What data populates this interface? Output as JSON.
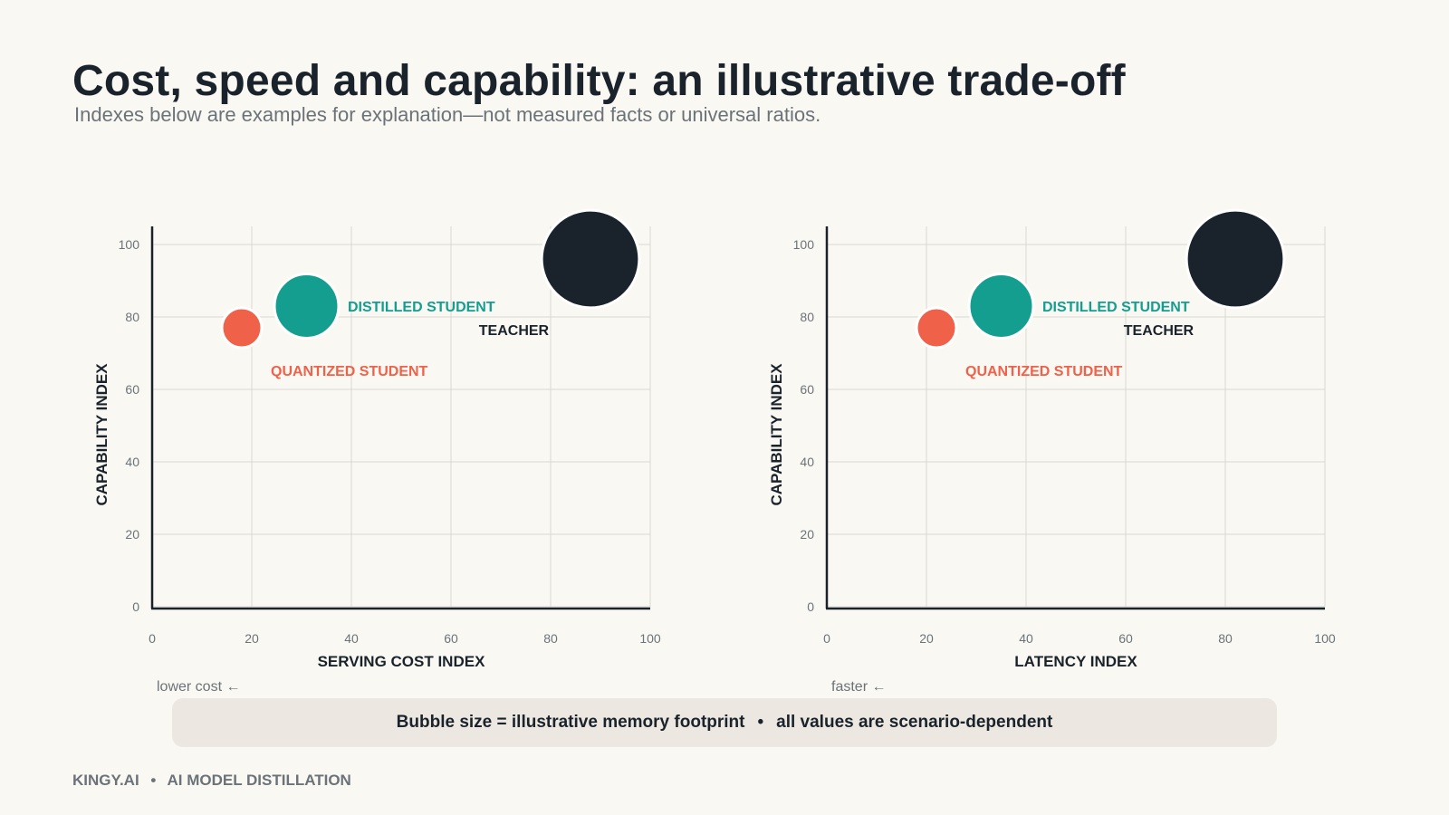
{
  "header": {
    "title": "Cost, speed and capability: an illustrative trade-off",
    "subtitle": "Indexes below are examples for explanation—not measured facts or universal ratios."
  },
  "chart_data": [
    {
      "type": "scatter",
      "xlabel": "SERVING COST INDEX",
      "ylabel": "CAPABILITY INDEX",
      "x_note": "lower cost ←",
      "xlim": [
        0,
        100
      ],
      "ylim": [
        0,
        100
      ],
      "x_ticks": [
        "0",
        "20",
        "40",
        "60",
        "80",
        "100"
      ],
      "y_ticks": [
        "0",
        "20",
        "40",
        "60",
        "80",
        "100"
      ],
      "grid": true,
      "series": [
        {
          "name": "QUANTIZED STUDENT",
          "x": 18,
          "y": 77,
          "size": 1,
          "color": "#ef6149"
        },
        {
          "name": "DISTILLED STUDENT",
          "x": 31,
          "y": 83,
          "size": 2.6,
          "color": "#139e90"
        },
        {
          "name": "TEACHER",
          "x": 88,
          "y": 96,
          "size": 6,
          "color": "#1a232b"
        }
      ]
    },
    {
      "type": "scatter",
      "xlabel": "LATENCY INDEX",
      "ylabel": "CAPABILITY INDEX",
      "x_note": "faster ←",
      "xlim": [
        0,
        100
      ],
      "ylim": [
        0,
        100
      ],
      "x_ticks": [
        "0",
        "20",
        "40",
        "60",
        "80",
        "100"
      ],
      "y_ticks": [
        "0",
        "20",
        "40",
        "60",
        "80",
        "100"
      ],
      "grid": true,
      "series": [
        {
          "name": "QUANTIZED STUDENT",
          "x": 22,
          "y": 77,
          "size": 1,
          "color": "#ef6149"
        },
        {
          "name": "DISTILLED STUDENT",
          "x": 35,
          "y": 83,
          "size": 2.6,
          "color": "#139e90"
        },
        {
          "name": "TEACHER",
          "x": 82,
          "y": 96,
          "size": 6,
          "color": "#1a232b"
        }
      ]
    }
  ],
  "legend": {
    "left_text": "Bubble size = illustrative memory footprint",
    "separator": "•",
    "right_text": "all values are scenario-dependent"
  },
  "footer": {
    "brand": "KINGY.AI",
    "separator": "•",
    "section": "AI MODEL DISTILLATION"
  }
}
